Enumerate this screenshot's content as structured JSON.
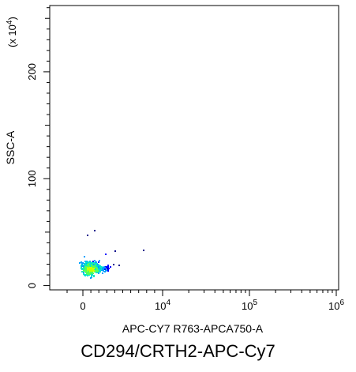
{
  "caption": "CD294/CRTH2-APC-Cy7",
  "chart_data": {
    "type": "scatter",
    "subtype": "flow-cytometry density dot plot",
    "xlabel": "APC-CY7 R763-APCA750-A",
    "ylabel": "SSC-A",
    "y_multiplier_label": "(x 10",
    "y_multiplier_exp": "4",
    "y_multiplier_close": ")",
    "x_scale": "biexponential (logicle)",
    "x_ticks": [
      {
        "value": 0,
        "base": "0",
        "exp": ""
      },
      {
        "value": 10000,
        "base": "10",
        "exp": "4"
      },
      {
        "value": 100000,
        "base": "10",
        "exp": "5"
      },
      {
        "value": 1000000,
        "base": "10",
        "exp": "6"
      }
    ],
    "y_ticks": [
      {
        "value": 0,
        "label": "0"
      },
      {
        "value": 100,
        "label": "100"
      },
      {
        "value": 200,
        "label": "200"
      }
    ],
    "ylim": [
      -4,
      262
    ],
    "grid": false,
    "legend": "none",
    "density_colors": [
      "#00008b",
      "#0000ff",
      "#00a0ff",
      "#00e5c8",
      "#55ff55",
      "#c8ff00"
    ],
    "population": {
      "x_center": 900,
      "x_range": [
        -300,
        8500
      ],
      "y_center": 16,
      "y_range": [
        5,
        55
      ],
      "points": [
        {
          "x": 900,
          "y": 16,
          "density": 5
        },
        {
          "x": 600,
          "y": 14,
          "density": 4
        },
        {
          "x": 1200,
          "y": 19,
          "density": 4
        },
        {
          "x": 300,
          "y": 20,
          "density": 3
        },
        {
          "x": 1600,
          "y": 13,
          "density": 3
        },
        {
          "x": 2000,
          "y": 24,
          "density": 2
        },
        {
          "x": 100,
          "y": 28,
          "density": 2
        },
        {
          "x": 2800,
          "y": 30,
          "density": 1
        },
        {
          "x": 4000,
          "y": 33,
          "density": 0
        },
        {
          "x": 7500,
          "y": 34,
          "density": 0
        },
        {
          "x": 500,
          "y": 48,
          "density": 0
        },
        {
          "x": 1400,
          "y": 52,
          "density": 0
        }
      ]
    }
  }
}
